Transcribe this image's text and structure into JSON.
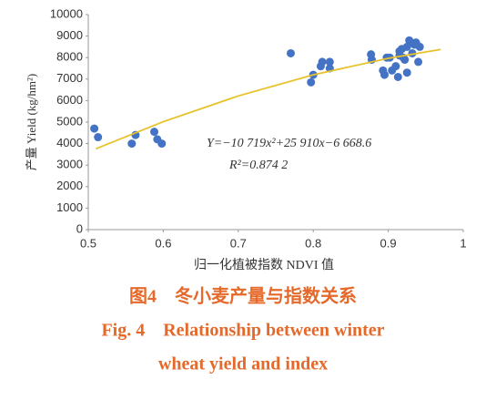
{
  "chart_data": {
    "type": "scatter",
    "x_label": "归一化植被指数 NDVI 值",
    "y_label": "产量 Yield (kg/hm²)",
    "equation": "Y=−10 719x²+25 910x−6 668.6",
    "r_squared": "R²=0.874 2",
    "caption_cn": "图4　冬小麦产量与指数关系",
    "caption_en_1": "Fig. 4　Relationship between winter",
    "caption_en_2": "wheat yield and index",
    "xlim": [
      0.5,
      1
    ],
    "ylim": [
      0,
      10000
    ],
    "xticks": [
      0.5,
      0.6,
      0.7,
      0.8,
      0.9,
      1
    ],
    "yticks": [
      0,
      1000,
      2000,
      3000,
      4000,
      5000,
      6000,
      7000,
      8000,
      9000,
      10000
    ],
    "color": "#4472c4",
    "x": [
      0.508,
      0.513,
      0.558,
      0.563,
      0.588,
      0.592,
      0.598,
      0.77,
      0.797,
      0.8,
      0.81,
      0.812,
      0.822,
      0.822,
      0.877,
      0.878,
      0.893,
      0.895,
      0.898,
      0.902,
      0.905,
      0.91,
      0.913,
      0.915,
      0.915,
      0.918,
      0.92,
      0.922,
      0.925,
      0.925,
      0.928,
      0.93,
      0.932,
      0.935,
      0.937,
      0.94,
      0.942
    ],
    "values": [
      4700,
      4300,
      4000,
      4400,
      4550,
      4200,
      4000,
      8200,
      6850,
      7200,
      7600,
      7800,
      7500,
      7800,
      8150,
      7900,
      7400,
      7200,
      8000,
      8000,
      7400,
      7600,
      7100,
      8100,
      8300,
      8400,
      8000,
      7900,
      7300,
      8500,
      8800,
      8700,
      8200,
      8600,
      8700,
      7800,
      8500
    ],
    "trend": {
      "color": "#e8c22a",
      "x": [
        0.51,
        0.6,
        0.7,
        0.8,
        0.9,
        0.97
      ],
      "values": [
        3757.5,
        5018.6,
        6216.1,
        7199.2,
        7968,
        8378.6
      ]
    }
  }
}
